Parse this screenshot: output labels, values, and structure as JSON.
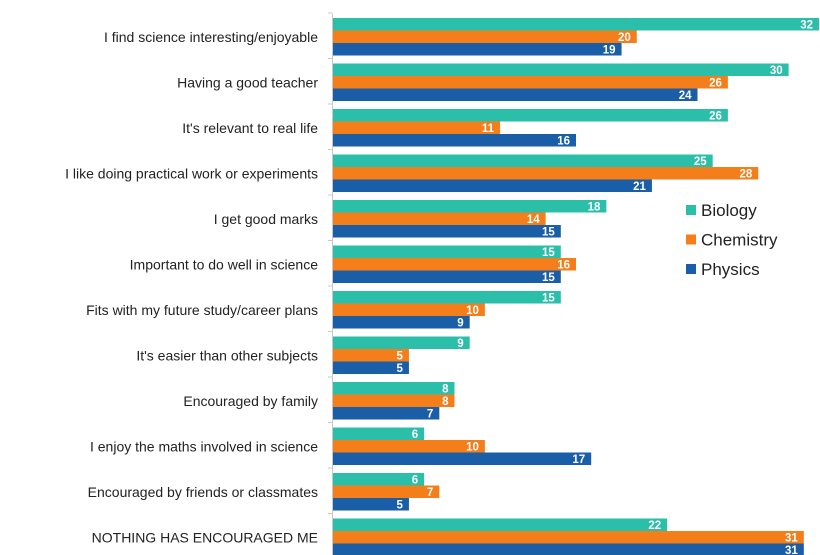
{
  "chart_data": {
    "type": "bar",
    "orientation": "horizontal",
    "title": "",
    "xlabel": "",
    "ylabel": "",
    "xlim": [
      0,
      32
    ],
    "grid": false,
    "legend_position": "right",
    "categories": [
      "I find science interesting/enjoyable",
      "Having a good teacher",
      "It's relevant to real life",
      "I like doing practical work or experiments",
      "I get good marks",
      "Important to do well in science",
      "Fits with my future study/career plans",
      "It's easier than other subjects",
      "Encouraged by family",
      "I enjoy the maths involved in science",
      "Encouraged by friends or classmates",
      "NOTHING HAS ENCOURAGED ME"
    ],
    "series": [
      {
        "name": "Biology",
        "color": "#2bbfaa",
        "values": [
          32,
          30,
          26,
          25,
          18,
          15,
          15,
          9,
          8,
          6,
          6,
          22
        ]
      },
      {
        "name": "Chemistry",
        "color": "#f47f1a",
        "values": [
          20,
          26,
          11,
          28,
          14,
          16,
          10,
          5,
          8,
          10,
          7,
          31
        ]
      },
      {
        "name": "Physics",
        "color": "#1b5ea8",
        "values": [
          19,
          24,
          16,
          21,
          15,
          15,
          9,
          5,
          7,
          17,
          5,
          31
        ]
      }
    ]
  }
}
